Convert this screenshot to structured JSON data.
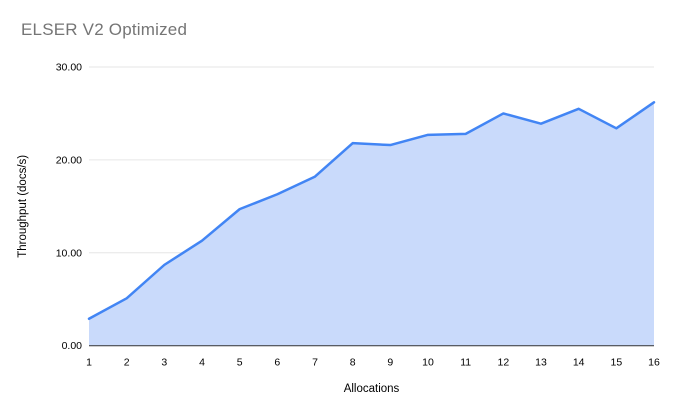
{
  "chart_data": {
    "type": "area",
    "title": "ELSER V2 Optimized",
    "xlabel": "Allocations",
    "ylabel": "Throughput (docs/s)",
    "x": [
      1,
      2,
      3,
      4,
      5,
      6,
      7,
      8,
      9,
      10,
      11,
      12,
      13,
      14,
      15,
      16
    ],
    "values": [
      2.9,
      5.1,
      8.7,
      11.3,
      14.7,
      16.3,
      18.2,
      21.8,
      21.6,
      22.7,
      22.8,
      25.0,
      23.9,
      25.5,
      23.4,
      26.2
    ],
    "ylim": [
      0,
      30
    ],
    "yticks": [
      {
        "value": 0,
        "label": "0.00"
      },
      {
        "value": 10,
        "label": "10.00"
      },
      {
        "value": 20,
        "label": "20.00"
      },
      {
        "value": 30,
        "label": "30.00"
      }
    ],
    "grid": true,
    "legend": false,
    "colors": {
      "line": "#4285f4",
      "fill": "#c9dafb",
      "gridline": "#e6e6e6",
      "axis_line": "#333333",
      "title": "#757575",
      "tick_text": "#000000",
      "axis_label_text": "#000000"
    }
  }
}
